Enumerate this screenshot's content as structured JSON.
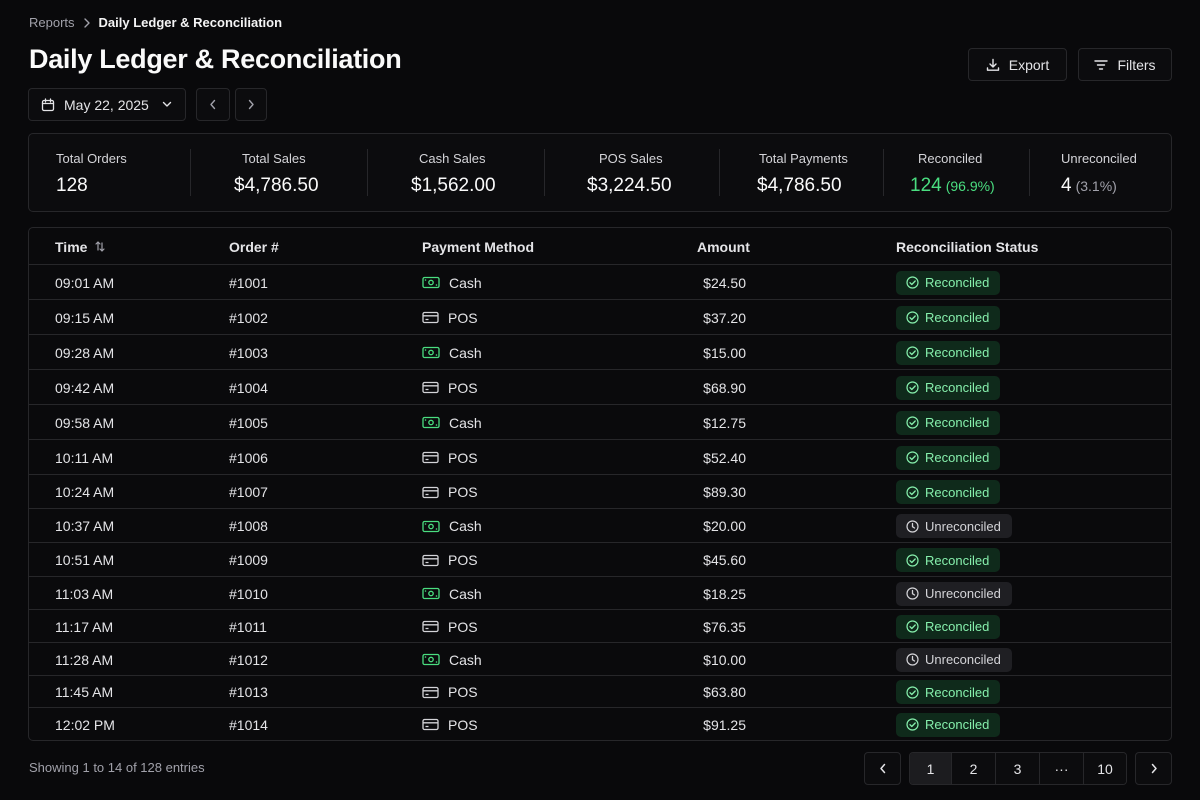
{
  "breadcrumb": {
    "parent": "Reports",
    "current": "Daily Ledger & Reconciliation"
  },
  "page_title": "Daily Ledger & Reconciliation",
  "actions": {
    "export_label": "Export",
    "filters_label": "Filters"
  },
  "date_picker": {
    "value": "May 22, 2025"
  },
  "summary": {
    "total_orders": {
      "label": "Total Orders",
      "value": "128"
    },
    "total_sales": {
      "label": "Total Sales",
      "value": "$4,786.50"
    },
    "cash_sales": {
      "label": "Cash Sales",
      "value": "$1,562.00"
    },
    "pos_sales": {
      "label": "POS Sales",
      "value": "$3,224.50"
    },
    "total_payments": {
      "label": "Total Payments",
      "value": "$4,786.50"
    },
    "reconciled": {
      "label": "Reconciled",
      "value": "124",
      "pct": "(96.9%)"
    },
    "unreconciled": {
      "label": "Unreconciled",
      "value": "4",
      "pct": "(3.1%)"
    }
  },
  "table": {
    "columns": [
      "Time",
      "Order #",
      "Payment Method",
      "Amount",
      "Reconciliation Status"
    ],
    "rows": [
      {
        "time": "09:01 AM",
        "order": "#1001",
        "method": "Cash",
        "amount": "$24.50",
        "status": "Reconciled"
      },
      {
        "time": "09:15 AM",
        "order": "#1002",
        "method": "POS",
        "amount": "$37.20",
        "status": "Reconciled"
      },
      {
        "time": "09:28 AM",
        "order": "#1003",
        "method": "Cash",
        "amount": "$15.00",
        "status": "Reconciled"
      },
      {
        "time": "09:42 AM",
        "order": "#1004",
        "method": "POS",
        "amount": "$68.90",
        "status": "Reconciled"
      },
      {
        "time": "09:58 AM",
        "order": "#1005",
        "method": "Cash",
        "amount": "$12.75",
        "status": "Reconciled"
      },
      {
        "time": "10:11 AM",
        "order": "#1006",
        "method": "POS",
        "amount": "$52.40",
        "status": "Reconciled"
      },
      {
        "time": "10:24 AM",
        "order": "#1007",
        "method": "POS",
        "amount": "$89.30",
        "status": "Reconciled"
      },
      {
        "time": "10:37 AM",
        "order": "#1008",
        "method": "Cash",
        "amount": "$20.00",
        "status": "Unreconciled"
      },
      {
        "time": "10:51 AM",
        "order": "#1009",
        "method": "POS",
        "amount": "$45.60",
        "status": "Reconciled"
      },
      {
        "time": "11:03 AM",
        "order": "#1010",
        "method": "Cash",
        "amount": "$18.25",
        "status": "Unreconciled"
      },
      {
        "time": "11:17 AM",
        "order": "#1011",
        "method": "POS",
        "amount": "$76.35",
        "status": "Reconciled"
      },
      {
        "time": "11:28 AM",
        "order": "#1012",
        "method": "Cash",
        "amount": "$10.00",
        "status": "Unreconciled"
      },
      {
        "time": "11:45 AM",
        "order": "#1013",
        "method": "POS",
        "amount": "$63.80",
        "status": "Reconciled"
      },
      {
        "time": "12:02 PM",
        "order": "#1014",
        "method": "POS",
        "amount": "$91.25",
        "status": "Reconciled"
      }
    ]
  },
  "footer": {
    "showing": "Showing 1 to 14 of 128 entries",
    "pages": [
      "1",
      "2",
      "3",
      "...",
      "10"
    ],
    "current_page": "1"
  },
  "colors": {
    "background": "#09090b",
    "border": "#27272a",
    "accent_green": "#4ade80",
    "reconciled_badge_bg": "#0f2a1b",
    "unreconciled_badge_bg": "#1f1f23"
  },
  "icons": {
    "breadcrumb_separator": "chevron-right-icon",
    "export": "download-icon",
    "filters": "filter-lines-icon",
    "date": "calendar-icon",
    "cash": "banknote-icon",
    "pos": "credit-card-icon",
    "reconciled": "check-circle-icon",
    "unreconciled": "clock-icon",
    "sort": "sort-arrows-icon"
  }
}
